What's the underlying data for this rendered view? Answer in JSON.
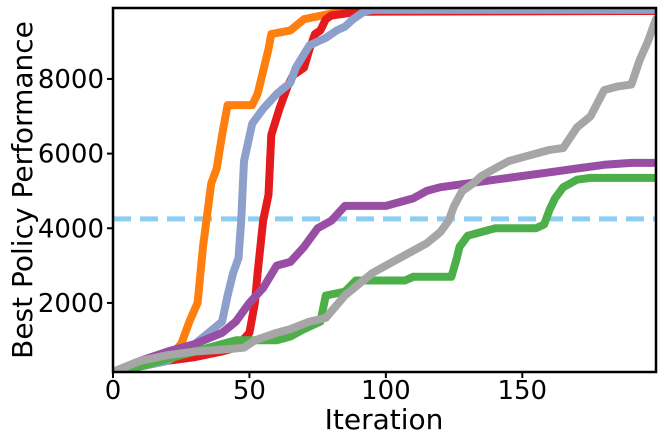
{
  "chart_data": {
    "type": "line",
    "title": "",
    "xlabel": "Iteration",
    "ylabel": "Best Policy Performance",
    "xlim": [
      0,
      199
    ],
    "ylim": [
      150,
      9900
    ],
    "xticks": [
      0,
      50,
      100,
      150
    ],
    "xtick_labels": [
      "0",
      "50",
      "100",
      "150"
    ],
    "yticks": [
      2000,
      4000,
      6000,
      8000
    ],
    "ytick_labels": [
      "2000",
      "4000",
      "6000",
      "8000"
    ],
    "grid": false,
    "legend": "none",
    "baseline": {
      "name": "baseline",
      "value": 4250,
      "color": "#8ecdf2",
      "style": "dashed"
    },
    "series": [
      {
        "name": "orange",
        "color": "#ff7f0e",
        "points": [
          [
            0,
            150
          ],
          [
            10,
            350
          ],
          [
            20,
            500
          ],
          [
            25,
            900
          ],
          [
            28,
            1500
          ],
          [
            31,
            2000
          ],
          [
            33,
            3500
          ],
          [
            36,
            5200
          ],
          [
            38,
            5600
          ],
          [
            40,
            6500
          ],
          [
            42,
            7300
          ],
          [
            51,
            7300
          ],
          [
            53,
            7600
          ],
          [
            57,
            8800
          ],
          [
            58,
            9200
          ],
          [
            65,
            9300
          ],
          [
            70,
            9600
          ],
          [
            80,
            9750
          ],
          [
            90,
            9850
          ],
          [
            100,
            9900
          ],
          [
            199,
            9900
          ]
        ]
      },
      {
        "name": "red",
        "color": "#e41a1c",
        "points": [
          [
            0,
            150
          ],
          [
            10,
            300
          ],
          [
            20,
            450
          ],
          [
            30,
            550
          ],
          [
            40,
            700
          ],
          [
            45,
            800
          ],
          [
            50,
            1200
          ],
          [
            52,
            2000
          ],
          [
            53,
            2800
          ],
          [
            55,
            4200
          ],
          [
            57,
            4900
          ],
          [
            58,
            6500
          ],
          [
            61,
            7200
          ],
          [
            64,
            7800
          ],
          [
            66,
            8100
          ],
          [
            70,
            8300
          ],
          [
            72,
            8800
          ],
          [
            74,
            9200
          ],
          [
            76,
            9300
          ],
          [
            78,
            9600
          ],
          [
            80,
            9700
          ],
          [
            90,
            9800
          ],
          [
            199,
            9820
          ]
        ]
      },
      {
        "name": "steel-blue",
        "color": "#8da0cb",
        "points": [
          [
            0,
            150
          ],
          [
            10,
            300
          ],
          [
            20,
            450
          ],
          [
            30,
            900
          ],
          [
            35,
            1200
          ],
          [
            40,
            1500
          ],
          [
            42,
            2200
          ],
          [
            44,
            2800
          ],
          [
            46,
            3200
          ],
          [
            47,
            4200
          ],
          [
            48,
            5800
          ],
          [
            51,
            6800
          ],
          [
            55,
            7200
          ],
          [
            60,
            7600
          ],
          [
            65,
            7900
          ],
          [
            67,
            8300
          ],
          [
            72,
            8900
          ],
          [
            75,
            9000
          ],
          [
            78,
            9100
          ],
          [
            82,
            9300
          ],
          [
            85,
            9400
          ],
          [
            88,
            9600
          ],
          [
            92,
            9800
          ],
          [
            95,
            9850
          ],
          [
            199,
            9850
          ]
        ]
      },
      {
        "name": "purple",
        "color": "#984ea3",
        "points": [
          [
            0,
            150
          ],
          [
            10,
            450
          ],
          [
            20,
            700
          ],
          [
            30,
            900
          ],
          [
            40,
            1200
          ],
          [
            45,
            1500
          ],
          [
            50,
            2000
          ],
          [
            55,
            2400
          ],
          [
            60,
            3000
          ],
          [
            65,
            3100
          ],
          [
            70,
            3500
          ],
          [
            75,
            4000
          ],
          [
            80,
            4200
          ],
          [
            85,
            4600
          ],
          [
            100,
            4600
          ],
          [
            110,
            4800
          ],
          [
            115,
            5000
          ],
          [
            120,
            5100
          ],
          [
            130,
            5200
          ],
          [
            140,
            5300
          ],
          [
            150,
            5400
          ],
          [
            160,
            5500
          ],
          [
            170,
            5600
          ],
          [
            180,
            5700
          ],
          [
            190,
            5750
          ],
          [
            199,
            5750
          ]
        ]
      },
      {
        "name": "green",
        "color": "#4daf4a",
        "points": [
          [
            0,
            150
          ],
          [
            10,
            300
          ],
          [
            20,
            500
          ],
          [
            30,
            700
          ],
          [
            40,
            900
          ],
          [
            45,
            1000
          ],
          [
            60,
            1000
          ],
          [
            65,
            1100
          ],
          [
            70,
            1300
          ],
          [
            76,
            1500
          ],
          [
            78,
            2200
          ],
          [
            85,
            2300
          ],
          [
            89,
            2600
          ],
          [
            107,
            2600
          ],
          [
            110,
            2700
          ],
          [
            124,
            2700
          ],
          [
            126,
            3200
          ],
          [
            127,
            3500
          ],
          [
            130,
            3800
          ],
          [
            135,
            3900
          ],
          [
            140,
            4000
          ],
          [
            155,
            4000
          ],
          [
            158,
            4100
          ],
          [
            160,
            4500
          ],
          [
            162,
            4800
          ],
          [
            165,
            5100
          ],
          [
            170,
            5300
          ],
          [
            175,
            5350
          ],
          [
            199,
            5350
          ]
        ]
      },
      {
        "name": "gray",
        "color": "#a6a6a6",
        "points": [
          [
            0,
            150
          ],
          [
            10,
            450
          ],
          [
            20,
            600
          ],
          [
            30,
            700
          ],
          [
            40,
            750
          ],
          [
            48,
            800
          ],
          [
            52,
            1000
          ],
          [
            60,
            1200
          ],
          [
            65,
            1300
          ],
          [
            72,
            1500
          ],
          [
            78,
            1600
          ],
          [
            85,
            2200
          ],
          [
            90,
            2500
          ],
          [
            95,
            2800
          ],
          [
            100,
            3000
          ],
          [
            105,
            3200
          ],
          [
            110,
            3400
          ],
          [
            115,
            3600
          ],
          [
            120,
            3900
          ],
          [
            123,
            4200
          ],
          [
            125,
            4600
          ],
          [
            128,
            5000
          ],
          [
            132,
            5200
          ],
          [
            135,
            5400
          ],
          [
            140,
            5600
          ],
          [
            145,
            5800
          ],
          [
            150,
            5900
          ],
          [
            155,
            6000
          ],
          [
            160,
            6100
          ],
          [
            165,
            6150
          ],
          [
            170,
            6700
          ],
          [
            175,
            7000
          ],
          [
            180,
            7700
          ],
          [
            185,
            7800
          ],
          [
            190,
            7850
          ],
          [
            193,
            8500
          ],
          [
            196,
            9000
          ],
          [
            199,
            9600
          ]
        ]
      }
    ]
  }
}
